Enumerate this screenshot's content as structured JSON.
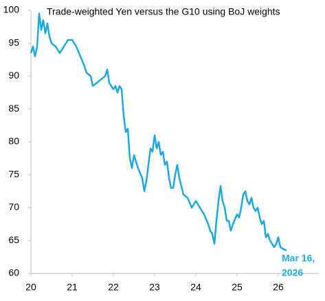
{
  "chart_data": {
    "type": "line",
    "title": "Trade-weighted Yen versus the G10 using BoJ weights",
    "annotation": [
      "Mar 16,",
      "2026"
    ],
    "series": [
      {
        "name": "Trade-weighted Yen",
        "color": "#1aa9e2",
        "x": [
          20.0,
          20.05,
          20.1,
          20.15,
          20.2,
          20.25,
          20.3,
          20.35,
          20.4,
          20.45,
          20.5,
          20.6,
          20.7,
          20.8,
          20.9,
          21.0,
          21.1,
          21.2,
          21.3,
          21.35,
          21.45,
          21.5,
          21.6,
          21.7,
          21.8,
          21.85,
          21.9,
          22.0,
          22.05,
          22.1,
          22.15,
          22.2,
          22.25,
          22.3,
          22.35,
          22.4,
          22.45,
          22.5,
          22.6,
          22.7,
          22.75,
          22.8,
          22.85,
          22.9,
          22.95,
          23.0,
          23.05,
          23.1,
          23.15,
          23.2,
          23.25,
          23.3,
          23.35,
          23.4,
          23.45,
          23.5,
          23.55,
          23.6,
          23.7,
          23.8,
          23.9,
          24.0,
          24.1,
          24.2,
          24.3,
          24.35,
          24.4,
          24.45,
          24.5,
          24.55,
          24.6,
          24.65,
          24.7,
          24.75,
          24.8,
          24.85,
          24.9,
          25.0,
          25.05,
          25.1,
          25.15,
          25.2,
          25.25,
          25.3,
          25.35,
          25.4,
          25.45,
          25.5,
          25.55,
          25.6,
          25.65,
          25.7,
          25.75,
          25.8,
          25.85,
          25.9,
          25.95,
          26.0,
          26.05,
          26.1,
          26.2
        ],
        "values": [
          93.5,
          94.5,
          93,
          94.5,
          99.5,
          97,
          98.5,
          96.5,
          98,
          96,
          95,
          94.5,
          93.5,
          94.5,
          95.5,
          95.5,
          94.5,
          93,
          91.5,
          90.5,
          90,
          88.5,
          89,
          89.5,
          90,
          91,
          89,
          88,
          88.5,
          87.5,
          88.5,
          88,
          84,
          81.5,
          82,
          77.5,
          76,
          78,
          76,
          74.5,
          72.5,
          74,
          76.5,
          79,
          78.5,
          81,
          79,
          80,
          78,
          78.5,
          76.5,
          77,
          74.5,
          73,
          73,
          75,
          76.5,
          74.5,
          72,
          71.5,
          70,
          71,
          70,
          69,
          67.5,
          66.5,
          66,
          64.5,
          68,
          71,
          73.3,
          71,
          70,
          68,
          68,
          66.5,
          67.5,
          69,
          68.5,
          70,
          72,
          72.5,
          71,
          70.5,
          71.5,
          70,
          69.5,
          70,
          68.5,
          67.5,
          68,
          65.5,
          66,
          65,
          64.5,
          64,
          64.5,
          65.5,
          64,
          63.8,
          63.5
        ]
      }
    ],
    "xlim": [
      20,
      27
    ],
    "xticks": [
      20,
      21,
      22,
      23,
      24,
      25,
      26
    ],
    "ylim": [
      60,
      100
    ],
    "yticks": [
      60,
      65,
      70,
      75,
      80,
      85,
      90,
      95,
      100
    ],
    "annotation_color": "#1ab0e8"
  }
}
